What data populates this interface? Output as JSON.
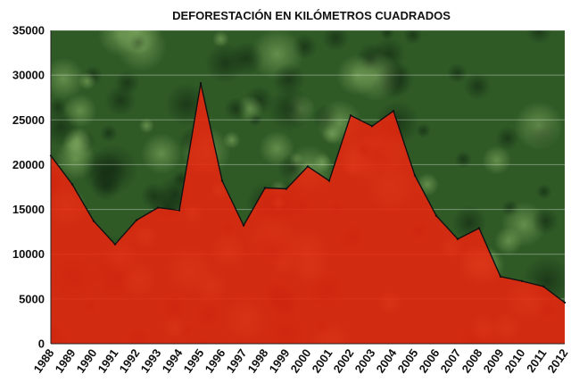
{
  "chart_data": {
    "type": "area",
    "title": "DEFORESTACIÓN EN KILÓMETROS CUADRADOS",
    "xlabel": "",
    "ylabel": "",
    "ylim": [
      0,
      35000
    ],
    "yticks": [
      0,
      5000,
      10000,
      15000,
      20000,
      25000,
      30000,
      35000
    ],
    "grid": true,
    "legend": "none",
    "background": "aerial photograph of rainforest canopy",
    "colors": {
      "area_fill": "#e8260f",
      "area_line": "#111111",
      "forest_dark": "#1f3a1c",
      "forest_mid": "#3f6b2c",
      "forest_light": "#7aa35a"
    },
    "categories": [
      "1988",
      "1989",
      "1990",
      "1991",
      "1992",
      "1993",
      "1994",
      "1995",
      "1996",
      "1997",
      "1998",
      "1999",
      "2000",
      "2001",
      "2002",
      "2003",
      "2004",
      "2005",
      "2006",
      "2007",
      "2008",
      "2009",
      "2010",
      "2011",
      "2012"
    ],
    "values": [
      21000,
      17800,
      13700,
      11100,
      13800,
      15200,
      14900,
      29100,
      18200,
      13200,
      17400,
      17300,
      19800,
      18200,
      25500,
      24300,
      26000,
      18800,
      14300,
      11700,
      12900,
      7500,
      7000,
      6400,
      4600
    ]
  }
}
